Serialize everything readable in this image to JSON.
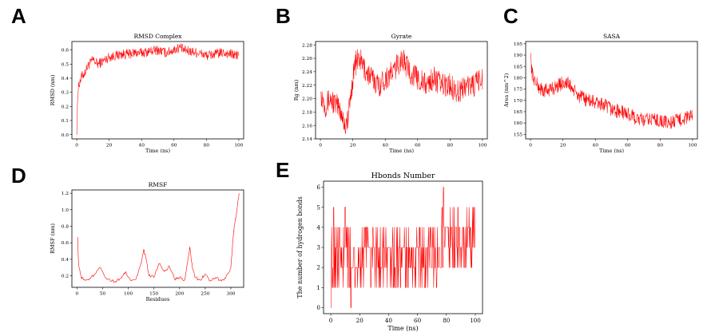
{
  "panels": [
    {
      "letter": "A"
    },
    {
      "letter": "B"
    },
    {
      "letter": "C"
    },
    {
      "letter": "D"
    },
    {
      "letter": "E"
    }
  ],
  "chart_data": [
    {
      "id": "A",
      "type": "line",
      "title": "RMSD Complex",
      "xlabel": "Time (ns)",
      "ylabel": "RMSD (nm)",
      "xlim": [
        -3,
        103
      ],
      "ylim": [
        -0.03,
        0.66
      ],
      "xticks": [
        0,
        20,
        40,
        60,
        80,
        100
      ],
      "yticks": [
        0.0,
        0.1,
        0.2,
        0.3,
        0.4,
        0.5,
        0.6
      ],
      "color": "#ff0000",
      "series": [
        {
          "name": "RMSD",
          "x": [
            0,
            0.5,
            1,
            2,
            3,
            5,
            7,
            10,
            13,
            16,
            20,
            24,
            28,
            32,
            36,
            40,
            45,
            50,
            55,
            60,
            64,
            66,
            70,
            75,
            80,
            85,
            90,
            95,
            100
          ],
          "y": [
            0.0,
            0.27,
            0.33,
            0.38,
            0.41,
            0.44,
            0.49,
            0.53,
            0.5,
            0.52,
            0.55,
            0.56,
            0.57,
            0.57,
            0.58,
            0.58,
            0.59,
            0.6,
            0.58,
            0.6,
            0.62,
            0.6,
            0.59,
            0.58,
            0.56,
            0.57,
            0.58,
            0.57,
            0.56
          ]
        }
      ]
    },
    {
      "id": "B",
      "type": "line",
      "title": "Gyrate",
      "xlabel": "Time (ns)",
      "ylabel": "Rg (nm)",
      "xlim": [
        -3,
        103
      ],
      "ylim": [
        2.14,
        2.285
      ],
      "xticks": [
        0,
        20,
        40,
        60,
        80,
        100
      ],
      "yticks": [
        2.14,
        2.16,
        2.18,
        2.2,
        2.22,
        2.24,
        2.26,
        2.28
      ],
      "color": "#ff0000",
      "series": [
        {
          "name": "Rg",
          "x": [
            0,
            3,
            6,
            10,
            13,
            15,
            17,
            19,
            21,
            24,
            28,
            32,
            36,
            40,
            45,
            50,
            53,
            55,
            60,
            65,
            70,
            75,
            80,
            85,
            90,
            95,
            100
          ],
          "y": [
            2.21,
            2.19,
            2.2,
            2.19,
            2.18,
            2.16,
            2.17,
            2.21,
            2.25,
            2.26,
            2.24,
            2.23,
            2.22,
            2.23,
            2.24,
            2.26,
            2.25,
            2.24,
            2.23,
            2.22,
            2.23,
            2.22,
            2.22,
            2.21,
            2.22,
            2.22,
            2.23
          ]
        }
      ]
    },
    {
      "id": "C",
      "type": "line",
      "title": "SASA",
      "xlabel": "Time (ns)",
      "ylabel": "Area (nm^2)",
      "xlim": [
        -3,
        103
      ],
      "ylim": [
        153,
        196
      ],
      "xticks": [
        0,
        20,
        40,
        60,
        80,
        100
      ],
      "yticks": [
        155,
        160,
        165,
        170,
        175,
        180,
        185,
        190,
        195
      ],
      "color": "#ff0000",
      "series": [
        {
          "name": "SASA",
          "x": [
            0,
            0.5,
            1,
            3,
            5,
            8,
            12,
            16,
            20,
            24,
            28,
            32,
            36,
            40,
            45,
            50,
            55,
            60,
            65,
            70,
            75,
            80,
            85,
            90,
            95,
            100
          ],
          "y": [
            191,
            186,
            182,
            178,
            176,
            174,
            175,
            176,
            178,
            177,
            173,
            171,
            170,
            169,
            168,
            166,
            165,
            164,
            162,
            161,
            162,
            161,
            160,
            161,
            162,
            163
          ]
        }
      ]
    },
    {
      "id": "D",
      "type": "line",
      "title": "RMSF",
      "xlabel": "Residues",
      "ylabel": "RMSF (nm)",
      "xlim": [
        -10,
        325
      ],
      "ylim": [
        0.06,
        1.24
      ],
      "xticks": [
        0,
        50,
        100,
        150,
        200,
        250,
        300
      ],
      "yticks": [
        0.2,
        0.4,
        0.6,
        0.8,
        1.0,
        1.2
      ],
      "color": "#ff0000",
      "series": [
        {
          "name": "RMSF",
          "x": [
            1,
            3,
            8,
            15,
            25,
            35,
            45,
            55,
            65,
            75,
            85,
            95,
            105,
            115,
            125,
            130,
            135,
            140,
            150,
            160,
            170,
            180,
            190,
            200,
            210,
            220,
            225,
            230,
            240,
            250,
            260,
            270,
            280,
            290,
            300,
            305,
            308,
            312,
            316
          ],
          "y": [
            0.67,
            0.35,
            0.18,
            0.15,
            0.17,
            0.22,
            0.3,
            0.18,
            0.14,
            0.13,
            0.17,
            0.25,
            0.14,
            0.16,
            0.35,
            0.52,
            0.4,
            0.2,
            0.18,
            0.35,
            0.25,
            0.32,
            0.16,
            0.18,
            0.15,
            0.55,
            0.3,
            0.18,
            0.15,
            0.22,
            0.14,
            0.18,
            0.15,
            0.17,
            0.3,
            0.7,
            0.85,
            1.0,
            1.2
          ]
        }
      ]
    },
    {
      "id": "E",
      "type": "line",
      "title": "Hbonds Number",
      "xlabel": "Time (ns)",
      "ylabel": "The number of hydrogen bonds",
      "xlim": [
        -5,
        105
      ],
      "ylim": [
        -0.3,
        6.3
      ],
      "xticks": [
        0,
        20,
        40,
        60,
        80,
        100
      ],
      "yticks": [
        0,
        1,
        2,
        3,
        4,
        5,
        6
      ],
      "color": "#ff0000",
      "series": [
        {
          "name": "Hbonds",
          "x": [
            0,
            2,
            4,
            6,
            8,
            10,
            12,
            14,
            16,
            20,
            25,
            30,
            35,
            40,
            45,
            50,
            55,
            60,
            65,
            70,
            75,
            77,
            78,
            80,
            85,
            88,
            90,
            95,
            100
          ],
          "y": [
            0,
            5,
            3,
            4,
            2,
            5,
            1,
            0,
            3,
            2,
            4,
            3,
            2,
            3,
            1,
            3,
            2,
            3,
            1,
            2,
            3,
            5,
            6,
            4,
            2,
            5,
            3,
            4,
            3
          ]
        }
      ]
    }
  ]
}
